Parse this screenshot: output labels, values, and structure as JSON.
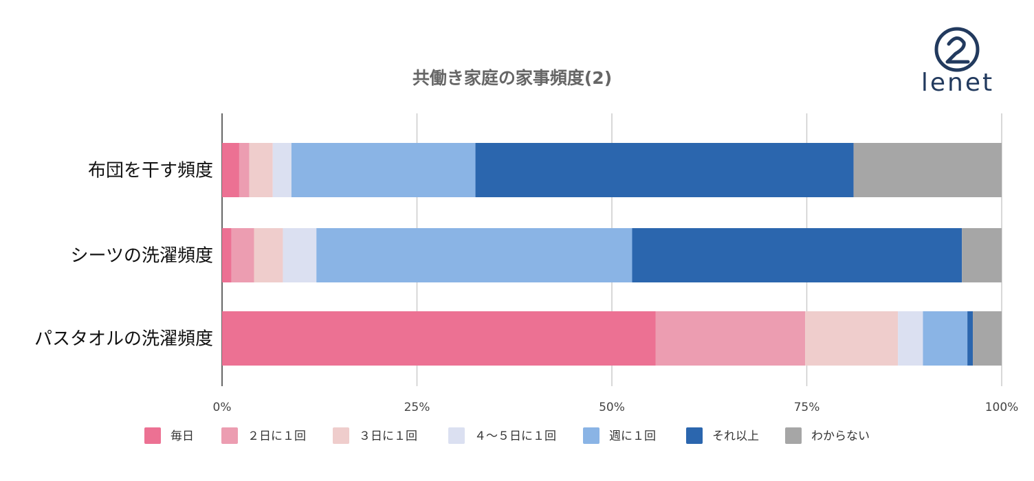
{
  "brand": {
    "name": "lenet",
    "color": "#223a5e"
  },
  "chart_data": {
    "type": "bar",
    "orientation": "horizontal",
    "stacked": true,
    "title": "共働き家庭の家事頻度(2)",
    "categories": [
      "布団を干す頻度",
      "シーツの洗濯頻度",
      "パスタオルの洗濯頻度"
    ],
    "xlim": [
      0,
      100
    ],
    "xticks": [
      0,
      25,
      50,
      75,
      100
    ],
    "xtick_labels": [
      "0%",
      "25%",
      "50%",
      "75%",
      "100%"
    ],
    "grid": true,
    "legend_position": "bottom",
    "series": [
      {
        "name": "毎日",
        "color": "#ec7193",
        "values": [
          2.2,
          1.2,
          55.6
        ]
      },
      {
        "name": "２日に１回",
        "color": "#ec9db1",
        "values": [
          1.3,
          2.9,
          19.2
        ]
      },
      {
        "name": "３日に１回",
        "color": "#efcdcc",
        "values": [
          3.0,
          3.7,
          11.9
        ]
      },
      {
        "name": "４〜５日に１回",
        "color": "#dbe0f1",
        "values": [
          2.4,
          4.3,
          3.2
        ]
      },
      {
        "name": "週に１回",
        "color": "#8ab4e5",
        "values": [
          23.6,
          40.5,
          5.7
        ]
      },
      {
        "name": "それ以上",
        "color": "#2b66ae",
        "values": [
          48.5,
          42.3,
          0.7
        ]
      },
      {
        "name": "わからない",
        "color": "#a6a6a6",
        "values": [
          19.0,
          5.1,
          3.7
        ]
      }
    ]
  }
}
